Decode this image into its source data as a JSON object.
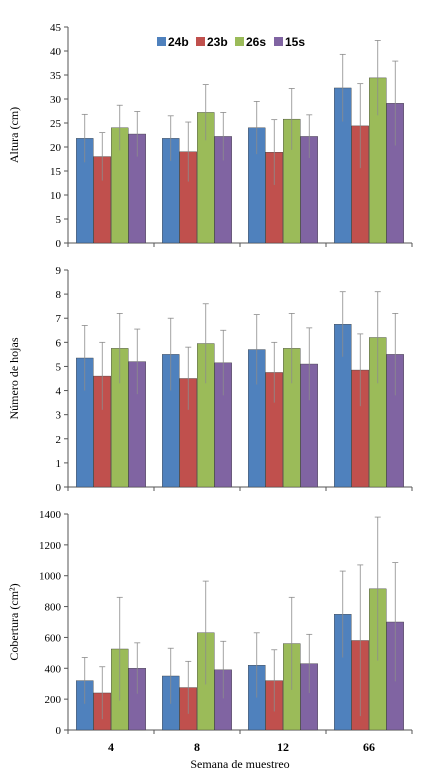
{
  "chart_data": [
    {
      "type": "bar",
      "ylabel": "Altura (cm)",
      "xlabel": "",
      "ylim": [
        0,
        45
      ],
      "yticks": [
        0,
        5,
        10,
        15,
        20,
        25,
        30,
        35,
        40,
        45
      ],
      "categories": [
        "",
        "",
        "",
        ""
      ],
      "legend": {
        "placement": "top",
        "entries": [
          "24b",
          "23b",
          "26s",
          "15s"
        ]
      },
      "series": [
        {
          "name": "24b",
          "color": "#4F81BD",
          "values": [
            21.8,
            21.8,
            24.0,
            32.3
          ],
          "error": [
            5.0,
            4.7,
            5.5,
            7.0
          ]
        },
        {
          "name": "23b",
          "color": "#C0504D",
          "values": [
            18.0,
            19.0,
            18.9,
            24.4
          ],
          "error": [
            5.0,
            6.2,
            6.8,
            8.8
          ]
        },
        {
          "name": "26s",
          "color": "#9BBB59",
          "values": [
            24.0,
            27.2,
            25.8,
            34.4
          ],
          "error": [
            4.7,
            5.8,
            6.4,
            7.8
          ]
        },
        {
          "name": "15s",
          "color": "#8064A2",
          "values": [
            22.7,
            22.2,
            22.2,
            29.1
          ],
          "error": [
            4.7,
            5.0,
            4.5,
            8.8
          ]
        }
      ]
    },
    {
      "type": "bar",
      "ylabel": "Número de hojas",
      "xlabel": "",
      "ylim": [
        0,
        9
      ],
      "yticks": [
        0,
        1,
        2,
        3,
        4,
        5,
        6,
        7,
        8,
        9
      ],
      "categories": [
        "",
        "",
        "",
        ""
      ],
      "series": [
        {
          "name": "24b",
          "color": "#4F81BD",
          "values": [
            5.35,
            5.5,
            5.7,
            6.75
          ],
          "error": [
            1.35,
            1.5,
            1.45,
            1.35
          ]
        },
        {
          "name": "23b",
          "color": "#C0504D",
          "values": [
            4.6,
            4.5,
            4.75,
            4.85
          ],
          "error": [
            1.4,
            1.3,
            1.25,
            1.5
          ]
        },
        {
          "name": "26s",
          "color": "#9BBB59",
          "values": [
            5.75,
            5.95,
            5.75,
            6.2
          ],
          "error": [
            1.45,
            1.65,
            1.45,
            1.9
          ]
        },
        {
          "name": "15s",
          "color": "#8064A2",
          "values": [
            5.2,
            5.15,
            5.1,
            5.5
          ],
          "error": [
            1.35,
            1.35,
            1.5,
            1.7
          ]
        }
      ]
    },
    {
      "type": "bar",
      "ylabel": "Cobertura (cm²)",
      "xlabel": "Semana de muestreo",
      "ylim": [
        0,
        1400
      ],
      "yticks": [
        0,
        200,
        400,
        600,
        800,
        1000,
        1200,
        1400
      ],
      "categories": [
        "4",
        "8",
        "12",
        "66"
      ],
      "series": [
        {
          "name": "24b",
          "color": "#4F81BD",
          "values": [
            320,
            350,
            420,
            750
          ],
          "error": [
            150,
            180,
            210,
            280
          ]
        },
        {
          "name": "23b",
          "color": "#C0504D",
          "values": [
            240,
            275,
            320,
            580
          ],
          "error": [
            170,
            170,
            200,
            490
          ]
        },
        {
          "name": "26s",
          "color": "#9BBB59",
          "values": [
            525,
            630,
            560,
            915
          ],
          "error": [
            335,
            335,
            300,
            465
          ]
        },
        {
          "name": "15s",
          "color": "#8064A2",
          "values": [
            400,
            390,
            430,
            700
          ],
          "error": [
            165,
            185,
            190,
            385
          ]
        }
      ]
    }
  ]
}
